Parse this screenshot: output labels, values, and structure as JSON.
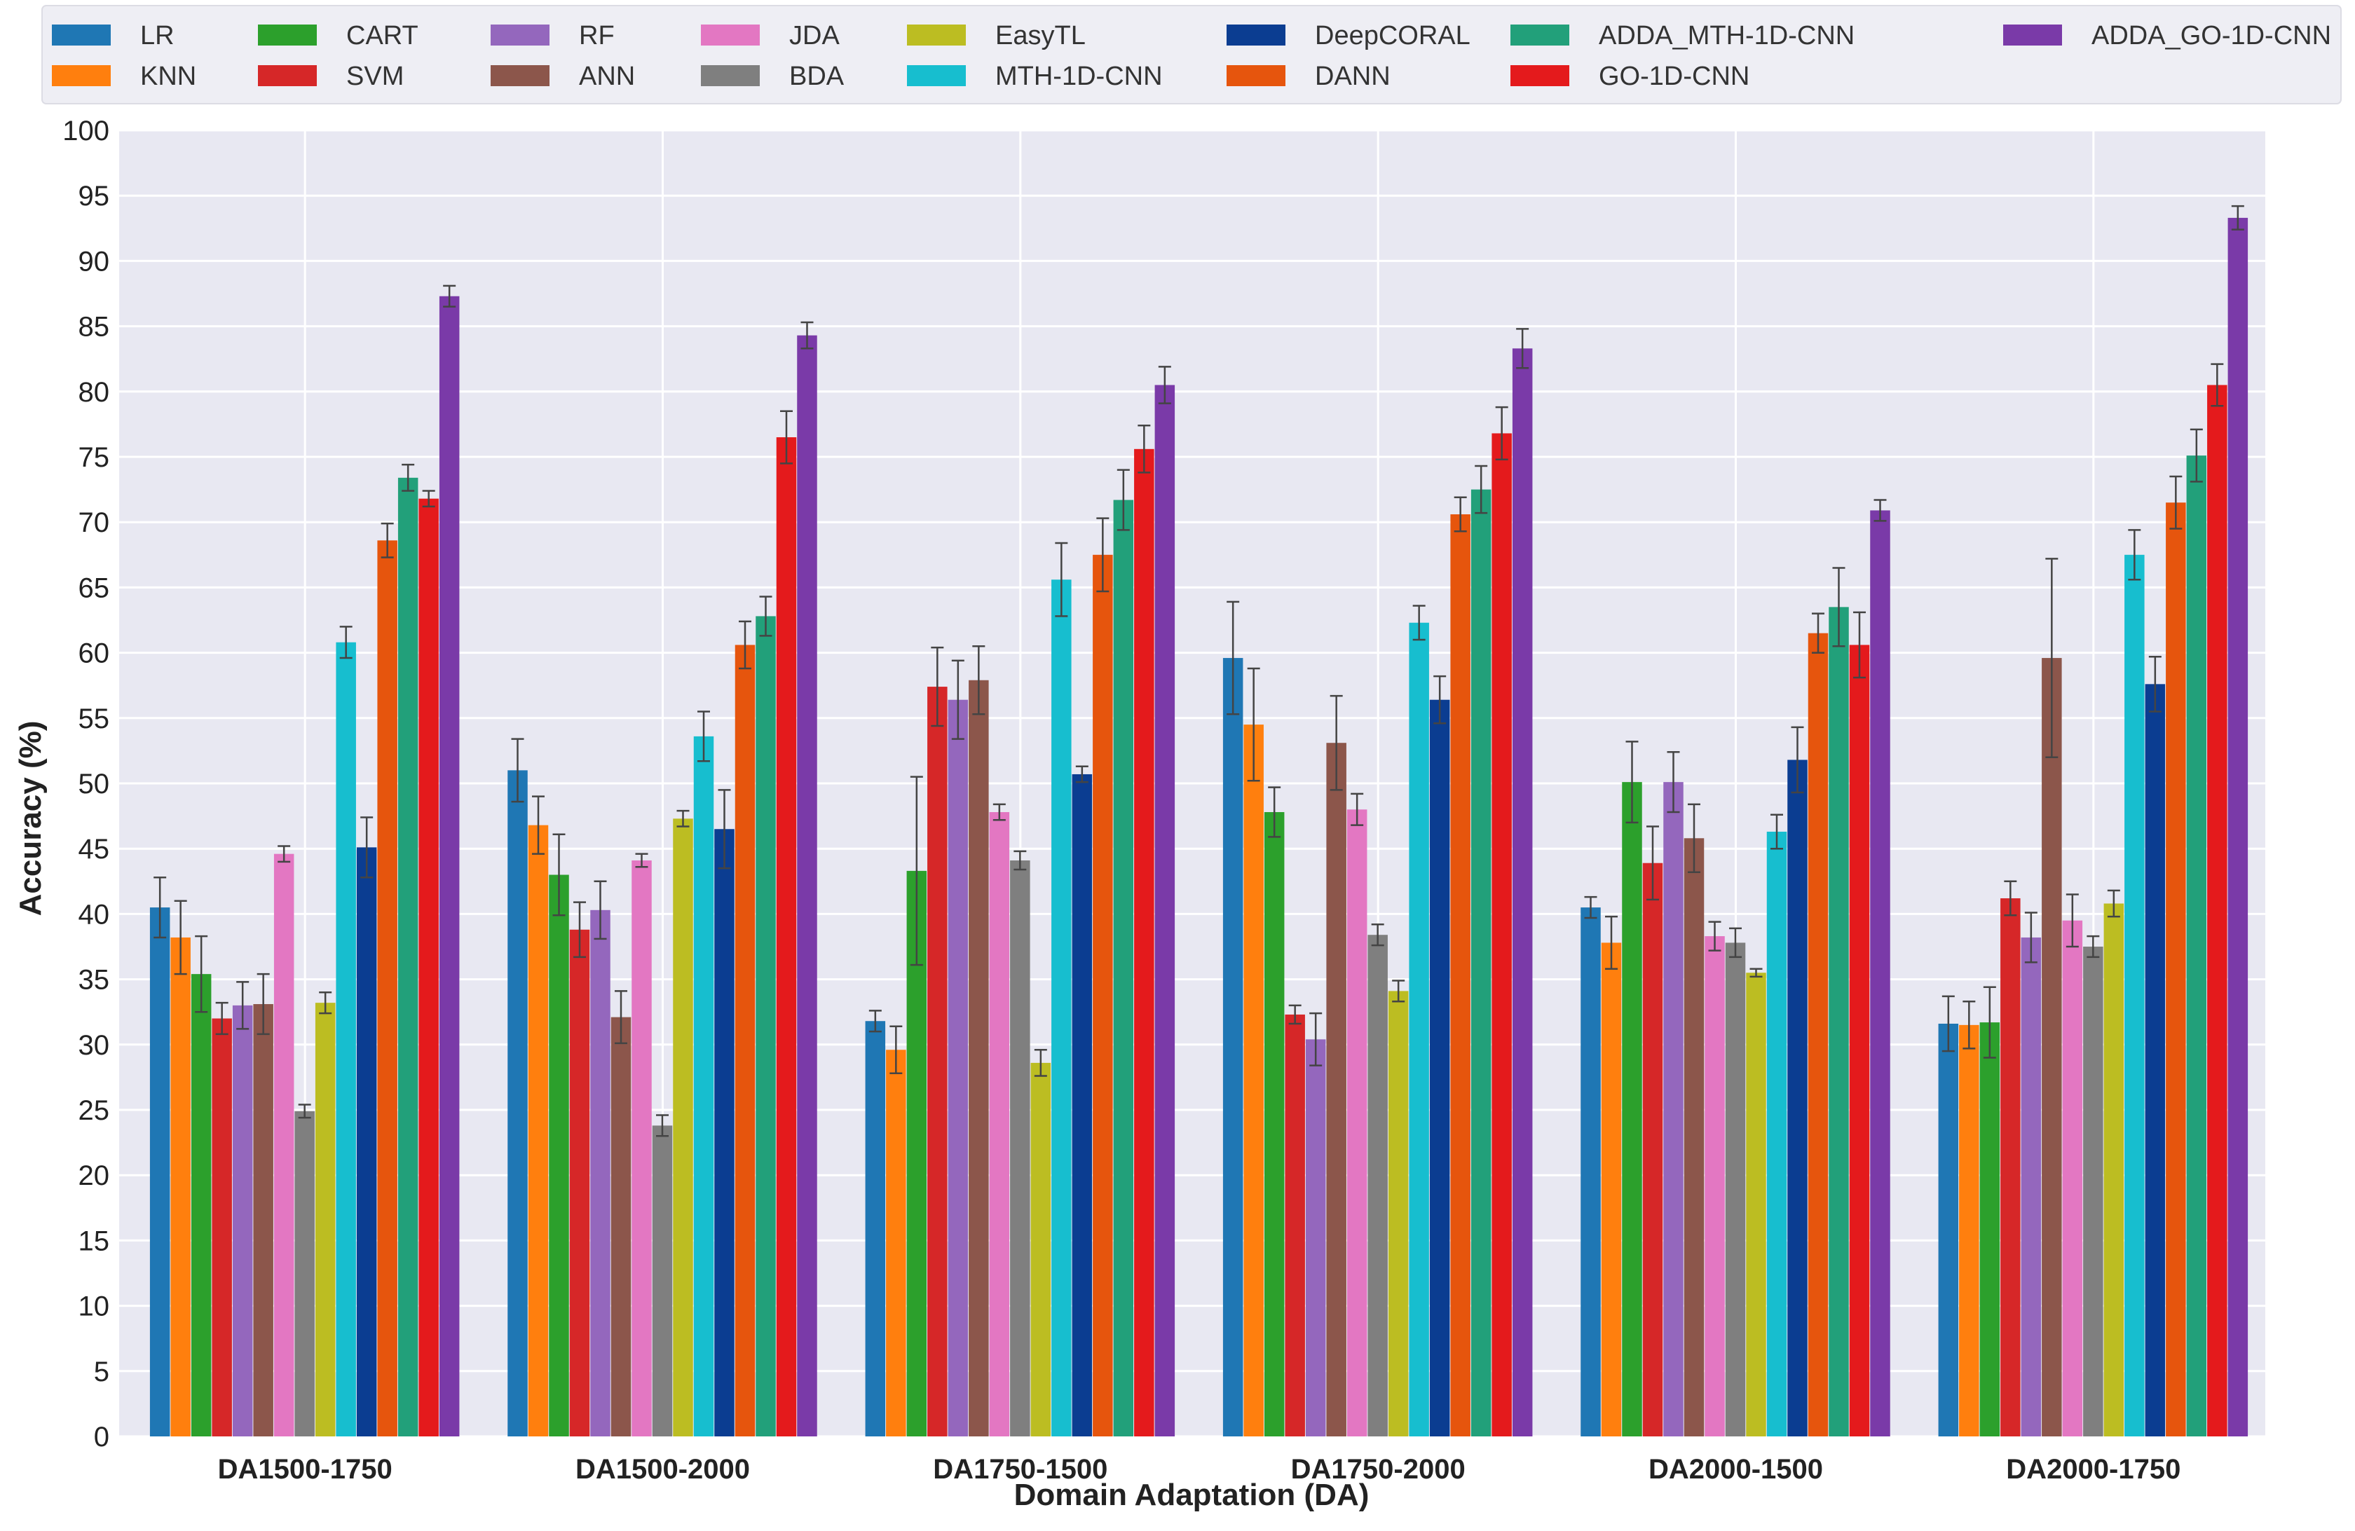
{
  "chart_data": {
    "type": "bar",
    "title": "",
    "xlabel": "Domain Adaptation (DA)",
    "ylabel": "Accuracy (%)",
    "ylim": [
      0,
      100
    ],
    "yticks": [
      0,
      5,
      10,
      15,
      20,
      25,
      30,
      35,
      40,
      45,
      50,
      55,
      60,
      65,
      70,
      75,
      80,
      85,
      90,
      95,
      100
    ],
    "grid": true,
    "legend_position": "top",
    "categories": [
      "DA1500-1750",
      "DA1500-2000",
      "DA1750-1500",
      "DA1750-2000",
      "DA2000-1500",
      "DA2000-1750"
    ],
    "series": [
      {
        "name": "LR",
        "color": "#1f77b4",
        "values": [
          40.5,
          51.0,
          31.8,
          59.6,
          40.5,
          31.6
        ],
        "errors": [
          2.3,
          2.4,
          0.8,
          4.3,
          0.8,
          2.1
        ]
      },
      {
        "name": "KNN",
        "color": "#ff7f0e",
        "values": [
          38.2,
          46.8,
          29.6,
          54.5,
          37.8,
          31.5
        ],
        "errors": [
          2.8,
          2.2,
          1.8,
          4.3,
          2.0,
          1.8
        ]
      },
      {
        "name": "CART",
        "color": "#2ca02c",
        "values": [
          35.4,
          43.0,
          43.3,
          47.8,
          50.1,
          31.7
        ],
        "errors": [
          2.9,
          3.1,
          7.2,
          1.9,
          3.1,
          2.7
        ]
      },
      {
        "name": "SVM",
        "color": "#d62728",
        "values": [
          32.0,
          38.8,
          57.4,
          32.3,
          43.9,
          41.2
        ],
        "errors": [
          1.2,
          2.1,
          3.0,
          0.7,
          2.8,
          1.3
        ]
      },
      {
        "name": "RF",
        "color": "#9467bd",
        "values": [
          33.0,
          40.3,
          56.4,
          30.4,
          50.1,
          38.2
        ],
        "errors": [
          1.8,
          2.2,
          3.0,
          2.0,
          2.3,
          1.9
        ]
      },
      {
        "name": "ANN",
        "color": "#8c564b",
        "values": [
          33.1,
          32.1,
          57.9,
          53.1,
          45.8,
          59.6
        ],
        "errors": [
          2.3,
          2.0,
          2.6,
          3.6,
          2.6,
          7.6
        ]
      },
      {
        "name": "JDA",
        "color": "#e377c2",
        "values": [
          44.6,
          44.1,
          47.8,
          48.0,
          38.3,
          39.5
        ],
        "errors": [
          0.6,
          0.5,
          0.6,
          1.2,
          1.1,
          2.0
        ]
      },
      {
        "name": "BDA",
        "color": "#7f7f7f",
        "values": [
          24.9,
          23.8,
          44.1,
          38.4,
          37.8,
          37.5
        ],
        "errors": [
          0.5,
          0.8,
          0.7,
          0.8,
          1.1,
          0.8
        ]
      },
      {
        "name": "EasyTL",
        "color": "#bcbd22",
        "values": [
          33.2,
          47.3,
          28.6,
          34.1,
          35.5,
          40.8
        ],
        "errors": [
          0.8,
          0.6,
          1.0,
          0.8,
          0.3,
          1.0
        ]
      },
      {
        "name": "MTH-1D-CNN",
        "color": "#17becf",
        "values": [
          60.8,
          53.6,
          65.6,
          62.3,
          46.3,
          67.5
        ],
        "errors": [
          1.2,
          1.9,
          2.8,
          1.3,
          1.3,
          1.9
        ]
      },
      {
        "name": "DeepCORAL",
        "color": "#0b3d91",
        "values": [
          45.1,
          46.5,
          50.7,
          56.4,
          51.8,
          57.6
        ],
        "errors": [
          2.3,
          3.0,
          0.6,
          1.8,
          2.5,
          2.1
        ]
      },
      {
        "name": "DANN",
        "color": "#e6550d",
        "values": [
          68.6,
          60.6,
          67.5,
          70.6,
          61.5,
          71.5
        ],
        "errors": [
          1.3,
          1.8,
          2.8,
          1.3,
          1.5,
          2.0
        ]
      },
      {
        "name": "ADDA_MTH-1D-CNN",
        "color": "#22a07a",
        "values": [
          73.4,
          62.8,
          71.7,
          72.5,
          63.5,
          75.1
        ],
        "errors": [
          1.0,
          1.5,
          2.3,
          1.8,
          3.0,
          2.0
        ]
      },
      {
        "name": "GO-1D-CNN",
        "color": "#e41a1c",
        "values": [
          71.8,
          76.5,
          75.6,
          76.8,
          60.6,
          80.5
        ],
        "errors": [
          0.6,
          2.0,
          1.8,
          2.0,
          2.5,
          1.6
        ]
      },
      {
        "name": "ADDA_GO-1D-CNN",
        "color": "#7a3aa8",
        "values": [
          87.3,
          84.3,
          80.5,
          83.3,
          70.9,
          93.3
        ],
        "errors": [
          0.8,
          1.0,
          1.4,
          1.5,
          0.8,
          0.9
        ]
      }
    ]
  },
  "colors": {
    "plot_background": "#e8e8f2",
    "grid": "#ffffff",
    "legend_background": "#eeeef4",
    "error_bar": "#444444"
  }
}
